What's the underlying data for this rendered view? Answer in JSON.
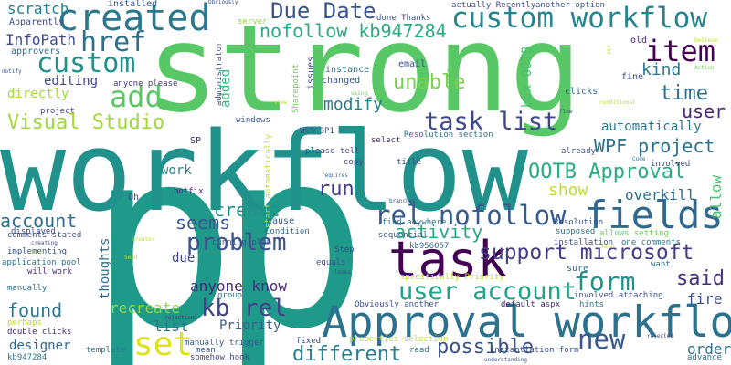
{
  "words": [
    {
      "text": "p",
      "color": "#1f9a8a"
    },
    {
      "text": "p",
      "color": "#1f9a8a"
    },
    {
      "text": "strong",
      "color": "#58c765"
    },
    {
      "text": "workflow",
      "color": "#21918c"
    },
    {
      "text": "task",
      "color": "#440154"
    },
    {
      "text": "Approval workflow",
      "color": "#2c728e"
    },
    {
      "text": "created",
      "color": "#2a788e"
    },
    {
      "text": "custom workflow",
      "color": "#25858e"
    },
    {
      "text": "fields",
      "color": "#31688e"
    },
    {
      "text": "custom",
      "color": "#22908c"
    },
    {
      "text": "href",
      "color": "#2d718e"
    },
    {
      "text": "Due Date",
      "color": "#3a548c"
    },
    {
      "text": "item",
      "color": "#440154"
    },
    {
      "text": "add",
      "color": "#59c864"
    },
    {
      "text": "Visual Studio",
      "color": "#a0da39"
    },
    {
      "text": "task list",
      "color": "#3e4989"
    },
    {
      "text": "rel nofollow",
      "color": "#375b8d"
    },
    {
      "text": "support microsoft",
      "color": "#433e85"
    },
    {
      "text": "user account",
      "color": "#20a386"
    },
    {
      "text": "problem",
      "color": "#3b528b"
    },
    {
      "text": "kb rel",
      "color": "#414487"
    },
    {
      "text": "set",
      "color": "#dde318"
    },
    {
      "text": "new",
      "color": "#38588c"
    },
    {
      "text": "OOTB Approval",
      "color": "#27ad81"
    },
    {
      "text": "WPF project",
      "color": "#2c728e"
    },
    {
      "text": "nofollow kb947284",
      "color": "#27ad81"
    },
    {
      "text": "seems",
      "color": "#3a548c"
    },
    {
      "text": "form",
      "color": "#21918c"
    },
    {
      "text": "possible",
      "color": "#3b528b"
    },
    {
      "text": "different",
      "color": "#287d8e"
    },
    {
      "text": "activity",
      "color": "#23a983"
    },
    {
      "text": "user",
      "color": "#482475"
    },
    {
      "text": "kind",
      "color": "#2a788e"
    },
    {
      "text": "time",
      "color": "#2e6f8e"
    },
    {
      "text": "account",
      "color": "#2c728e"
    },
    {
      "text": "create",
      "color": "#21918c"
    },
    {
      "text": "unable",
      "color": "#7ad151"
    },
    {
      "text": "modify",
      "color": "#27808e"
    },
    {
      "text": "said",
      "color": "#46307e"
    },
    {
      "text": "found",
      "color": "#2a788e"
    },
    {
      "text": "run",
      "color": "#424086"
    },
    {
      "text": "show",
      "color": "#bddf26"
    },
    {
      "text": "scratch",
      "color": "#26828e"
    },
    {
      "text": "InfoPath",
      "color": "#3e4989"
    },
    {
      "text": "editing",
      "color": "#404688"
    },
    {
      "text": "directly",
      "color": "#a2da37"
    },
    {
      "text": "automatically",
      "color": "#2a788e"
    },
    {
      "text": "overkill",
      "color": "#2d718e"
    },
    {
      "text": "order",
      "color": "#2c728e"
    },
    {
      "text": "allow",
      "color": "#4ac16d"
    },
    {
      "text": "fire",
      "color": "#3b528b"
    },
    {
      "text": "recreate",
      "color": "#8fd744"
    },
    {
      "text": "anyone know",
      "color": "#482878"
    },
    {
      "text": "designer",
      "color": "#30698e"
    },
    {
      "text": "list",
      "color": "#2a788e"
    },
    {
      "text": "Priority",
      "color": "#355f8d"
    },
    {
      "text": "thoughts",
      "color": "#2c728e"
    },
    {
      "text": "due",
      "color": "#3f4788"
    },
    {
      "text": "work",
      "color": "#26828e"
    },
    {
      "text": "added",
      "color": "#35b779"
    },
    {
      "text": "box OOTB",
      "color": "#48c16e"
    },
    {
      "text": "Apparently",
      "color": "#3e4a89"
    },
    {
      "text": "installed",
      "color": "#39568c"
    },
    {
      "text": "approvers",
      "color": "#31688e"
    },
    {
      "text": "anyone please",
      "color": "#453781"
    },
    {
      "text": "administrator",
      "color": "#3e4a89"
    },
    {
      "text": "Sharepoint",
      "color": "#6ccd5a"
    },
    {
      "text": "issues",
      "color": "#3f4788"
    },
    {
      "text": "instance",
      "color": "#2b748e"
    },
    {
      "text": "changed",
      "color": "#38588c"
    },
    {
      "text": "email",
      "color": "#3b528b"
    },
    {
      "text": "use",
      "color": "#6ccd5a"
    },
    {
      "text": "clicks",
      "color": "#2f6c8e"
    },
    {
      "text": "fine",
      "color": "#3e4a89"
    },
    {
      "text": "old",
      "color": "#482878"
    },
    {
      "text": "done Thanks",
      "color": "#3b528b"
    },
    {
      "text": "actually Recently",
      "color": "#3e4a89"
    },
    {
      "text": "another option",
      "color": "#3a548c"
    },
    {
      "text": "server",
      "color": "#8fd744"
    },
    {
      "text": "windows",
      "color": "#38588c"
    },
    {
      "text": "SP",
      "color": "#46307e"
    },
    {
      "text": "WSS SP1",
      "color": "#3b528b"
    },
    {
      "text": "copy",
      "color": "#404688"
    },
    {
      "text": "please tell",
      "color": "#3f4788"
    },
    {
      "text": "select",
      "color": "#482878"
    },
    {
      "text": "Resolution section",
      "color": "#2c728e"
    },
    {
      "text": "title",
      "color": "#3e4a89"
    },
    {
      "text": "already",
      "color": "#3b528b"
    },
    {
      "text": "involved",
      "color": "#3e4989"
    },
    {
      "text": "hotfix",
      "color": "#482475"
    },
    {
      "text": "start automatically",
      "color": "#bddf26"
    },
    {
      "text": "Oh",
      "color": "#3e4989"
    },
    {
      "text": "cause",
      "color": "#38588c"
    },
    {
      "text": "Condition",
      "color": "#31688e"
    },
    {
      "text": "find anywhere",
      "color": "#2c728e"
    },
    {
      "text": "Resolution",
      "color": "#3b528b"
    },
    {
      "text": "supposed",
      "color": "#2c728e"
    },
    {
      "text": "installation",
      "color": "#3e4a89"
    },
    {
      "text": "sequential",
      "color": "#3b528b"
    },
    {
      "text": "allows setting",
      "color": "#6ccd5a"
    },
    {
      "text": "kb956057",
      "color": "#31688e"
    },
    {
      "text": "one comments",
      "color": "#2a788e"
    },
    {
      "text": "displayed",
      "color": "#3e4989"
    },
    {
      "text": "comments stated",
      "color": "#3e4a89"
    },
    {
      "text": "implementing",
      "color": "#3b528b"
    },
    {
      "text": "application pool",
      "color": "#2c728e"
    },
    {
      "text": "will work",
      "color": "#482878"
    },
    {
      "text": "cunning plan",
      "color": "#3b528b"
    },
    {
      "text": "Step",
      "color": "#3e4a89"
    },
    {
      "text": "equals",
      "color": "#3b528b"
    },
    {
      "text": "sure",
      "color": "#30698e"
    },
    {
      "text": "specifically Priority",
      "color": "#bddf26"
    },
    {
      "text": "want",
      "color": "#2c728e"
    },
    {
      "text": "manually",
      "color": "#2c728e"
    },
    {
      "text": "group",
      "color": "#2a788e"
    },
    {
      "text": "Obviously another",
      "color": "#3b528b"
    },
    {
      "text": "hints",
      "color": "#2a788e"
    },
    {
      "text": "default aspx",
      "color": "#482878"
    },
    {
      "text": "involved attaching",
      "color": "#3b528b"
    },
    {
      "text": "perhaps",
      "color": "#bddf26"
    },
    {
      "text": "double clicks",
      "color": "#482878"
    },
    {
      "text": "manually trigger",
      "color": "#38588c"
    },
    {
      "text": "template",
      "color": "#2a788e"
    },
    {
      "text": "mean",
      "color": "#3b528b"
    },
    {
      "text": "somehow hook",
      "color": "#3e4989"
    },
    {
      "text": "fixed",
      "color": "#3e4a89"
    },
    {
      "text": "properties selection",
      "color": "#bddf26"
    },
    {
      "text": "read",
      "color": "#2c728e"
    },
    {
      "text": "instantiation form",
      "color": "#3b528b"
    },
    {
      "text": "kb947284",
      "color": "#2a788e"
    },
    {
      "text": "advance",
      "color": "#2c728e"
    },
    {
      "text": "project",
      "color": "#3e4a89"
    },
    {
      "text": "notify",
      "color": "#38588c"
    },
    {
      "text": "Action",
      "color": "#6ccd5a"
    },
    {
      "text": "believe",
      "color": "#bddf26"
    },
    {
      "text": "conditional",
      "color": "#bddf26"
    },
    {
      "text": "flow",
      "color": "#3e4989"
    },
    {
      "text": "Code",
      "color": "#2c728e"
    },
    {
      "text": "requires",
      "color": "#31688e"
    },
    {
      "text": "branches",
      "color": "#3e4989"
    },
    {
      "text": "creating",
      "color": "#3e4a89"
    },
    {
      "text": "Send",
      "color": "#bddf26"
    },
    {
      "text": "looks",
      "color": "#3b528b"
    },
    {
      "text": "rejections",
      "color": "#482878"
    },
    {
      "text": "rejected",
      "color": "#3e4a89"
    },
    {
      "text": "understanding",
      "color": "#3b528b"
    },
    {
      "text": "Obviously",
      "color": "#3e4a89"
    },
    {
      "text": "using",
      "color": "#6ccd5a"
    },
    {
      "text": "yes",
      "color": "#bddf26"
    },
    {
      "text": "creator",
      "color": "#bddf26"
    },
    {
      "text": "field",
      "color": "#bddf26"
    },
    {
      "text": "view",
      "color": "#bddf26"
    }
  ]
}
